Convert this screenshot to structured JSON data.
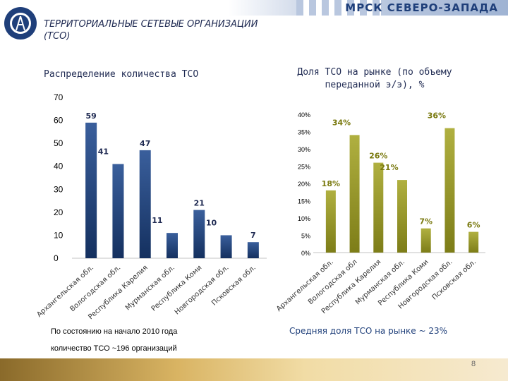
{
  "header": {
    "brand": "МРСК СЕВЕРО-ЗАПАДА",
    "title_line1": "ТЕРРИТОРИАЛЬНЫЕ СЕТЕВЫЕ ОРГАНИЗАЦИИ",
    "title_line2": "(ТСО)"
  },
  "footer": {
    "note1": "По состоянию на начало 2010 года",
    "note2": "количество ТСО ~196 организаций",
    "average": "Средняя доля ТСО на рынке ~ 23%",
    "page_number": "8"
  },
  "colors": {
    "left_bar": "#1f3f7a",
    "right_bar": "#9a9a2a",
    "brand": "#1f3f7a"
  },
  "chart_data": [
    {
      "type": "bar",
      "title": "Распределение количества ТСО",
      "categories": [
        "Архангельская обл.",
        "Вологодская обл.",
        "Республика Карелия",
        "Мурманская обл.",
        "Республика Коми",
        "Новгородская обл.",
        "Псковская обл."
      ],
      "values": [
        59,
        41,
        47,
        11,
        21,
        10,
        7
      ],
      "value_labels": [
        "59",
        "41",
        "47",
        "11",
        "21",
        "10",
        "7"
      ],
      "ylim": [
        0,
        70
      ],
      "yticks": [
        "0",
        "10",
        "20",
        "30",
        "40",
        "50",
        "60",
        "70"
      ],
      "xlabel": "",
      "ylabel": "",
      "grid": false
    },
    {
      "type": "bar",
      "title": "Доля ТСО на рынке (по объему переданной э/э), %",
      "categories": [
        "Архангельская обл.",
        "Вологодская обл",
        "Республика Карелия",
        "Мурманская обл.",
        "Республика Коми",
        "Новгородская обл.",
        "Псковская обл."
      ],
      "values": [
        18,
        34,
        26,
        21,
        7,
        36,
        6
      ],
      "value_labels": [
        "18%",
        "34%",
        "26%",
        "21%",
        "7%",
        "36%",
        "6%"
      ],
      "ylim": [
        0,
        40
      ],
      "yticks": [
        "0%",
        "5%",
        "10%",
        "15%",
        "20%",
        "25%",
        "30%",
        "35%",
        "40%"
      ],
      "xlabel": "",
      "ylabel": "",
      "grid": false
    }
  ]
}
